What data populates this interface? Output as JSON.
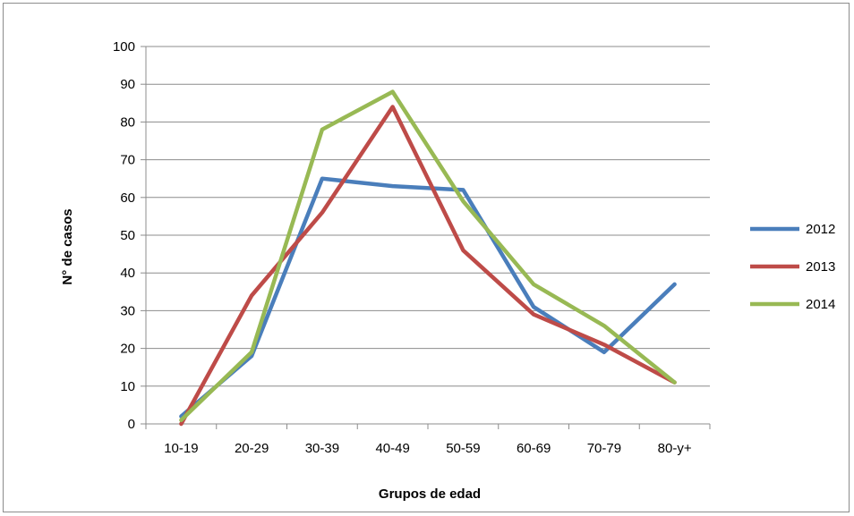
{
  "chart_data": {
    "type": "line",
    "title": "",
    "xlabel": "Grupos de edad",
    "ylabel": "N° de casos",
    "categories": [
      "10-19",
      "20-29",
      "30-39",
      "40-49",
      "50-59",
      "60-69",
      "70-79",
      "80-y+"
    ],
    "yticks": [
      "0",
      "10",
      "20",
      "30",
      "40",
      "50",
      "60",
      "70",
      "80",
      "90",
      "100"
    ],
    "ylim": [
      0,
      100
    ],
    "grid": true,
    "legend_position": "right",
    "series": [
      {
        "name": "2012",
        "color": "#4a7ebb",
        "values": [
          2,
          18,
          65,
          63,
          62,
          31,
          19,
          37
        ]
      },
      {
        "name": "2013",
        "color": "#be4b48",
        "values": [
          0,
          34,
          56,
          84,
          46,
          29,
          21,
          11
        ]
      },
      {
        "name": "2014",
        "color": "#98b954",
        "values": [
          1,
          19,
          78,
          88,
          59,
          37,
          26,
          11
        ]
      }
    ]
  }
}
